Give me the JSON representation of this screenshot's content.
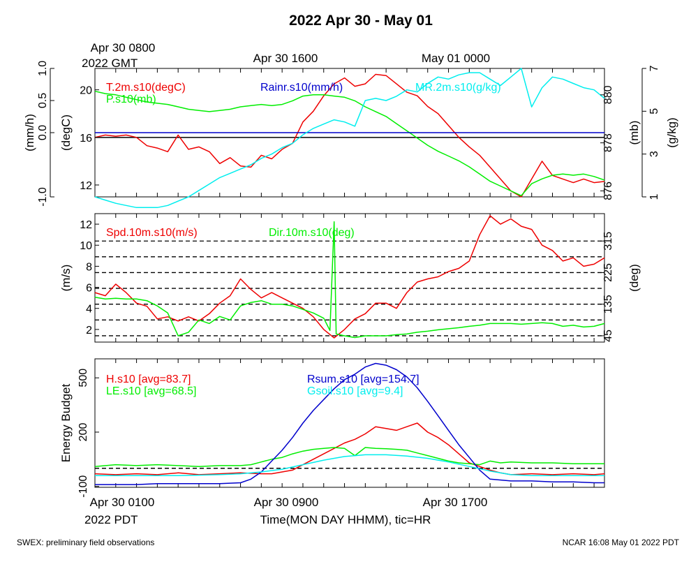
{
  "title": "2022 Apr 30 - May 01",
  "footer": {
    "left": "SWEX: preliminary field observations",
    "right": "NCAR 16:08 May 01 2022 PDT"
  },
  "top_axis": {
    "labels": [
      "Apr 30 0800",
      "Apr 30 1600",
      "May 01 0000"
    ],
    "gmt_label": "2022 GMT"
  },
  "bottom_axis": {
    "labels": [
      "Apr 30 0100",
      "Apr 30 0900",
      "Apr 30 1700"
    ],
    "pdt_label": "2022 PDT",
    "xlabel": "Time(MON DAY HHMM), tic=HR"
  },
  "colors": {
    "red": "#ee0000",
    "green": "#00ee00",
    "cyan": "#00eeee",
    "blue": "#0000cc",
    "black": "#000000"
  },
  "chart_data": [
    {
      "type": "line",
      "panel": "meteorology",
      "x_unit": "hours since Apr 30 0000 PDT",
      "xlim": [
        1,
        25.5
      ],
      "axes": {
        "rain": {
          "label": "(mm/h)",
          "ylim": [
            -1.0,
            1.0
          ],
          "ticks": [
            "-1.0",
            "0.0",
            "0.5",
            "1.0"
          ],
          "tick_values": [
            -1.0,
            0.0,
            0.5,
            1.0
          ]
        },
        "temp": {
          "label": "(degC)",
          "ylim": [
            11,
            21.8
          ],
          "ticks": [
            "12",
            "16",
            "20"
          ],
          "tick_values": [
            12,
            16,
            20
          ]
        },
        "pres": {
          "label": "(mb)",
          "ylim": [
            875.75,
            881.1
          ],
          "ticks": [
            "876",
            "878",
            "880"
          ],
          "tick_values": [
            876,
            878,
            880
          ]
        },
        "mr": {
          "label": "(g/kg)",
          "ylim": [
            1,
            7
          ],
          "ticks": [
            "1",
            "3",
            "5",
            "7"
          ],
          "tick_values": [
            1,
            3,
            5,
            7
          ]
        }
      },
      "reference_line": {
        "axis": "temp",
        "value": 16
      },
      "series": [
        {
          "name": "T.2m.s10(degC)",
          "color": "red",
          "axis": "temp",
          "x": [
            1,
            1.5,
            2,
            2.5,
            3,
            3.5,
            4,
            4.5,
            5,
            5.5,
            6,
            6.5,
            7,
            7.5,
            8,
            8.5,
            9,
            9.5,
            10,
            10.5,
            11,
            11.5,
            12,
            12.5,
            13,
            13.5,
            14,
            14.5,
            15,
            15.5,
            16,
            16.5,
            17,
            17.5,
            18,
            18.5,
            19,
            19.5,
            20,
            20.5,
            21,
            21.5,
            22,
            22.5,
            23,
            23.5,
            24,
            24.5,
            25,
            25.5
          ],
          "values": [
            16.0,
            16.2,
            16.1,
            16.2,
            16.0,
            15.3,
            15.1,
            14.8,
            16.2,
            15.0,
            15.2,
            14.8,
            13.8,
            14.3,
            13.6,
            13.5,
            14.5,
            14.2,
            15.0,
            15.5,
            17.3,
            18.2,
            19.5,
            20.5,
            21.0,
            20.3,
            20.5,
            21.3,
            21.2,
            20.5,
            19.8,
            19.5,
            18.6,
            18.0,
            17.0,
            16.0,
            15.2,
            14.5,
            13.5,
            12.5,
            11.5,
            11.0,
            12.5,
            14.0,
            12.8,
            12.5,
            12.2,
            12.5,
            12.2,
            12.3
          ]
        },
        {
          "name": "P.s10(mb)",
          "color": "green",
          "axis": "pres",
          "x": [
            1,
            1.5,
            2,
            2.5,
            3,
            3.5,
            4,
            4.5,
            5,
            5.5,
            6,
            6.5,
            7,
            7.5,
            8,
            8.5,
            9,
            9.5,
            10,
            10.5,
            11,
            11.5,
            12,
            12.5,
            13,
            13.5,
            14,
            14.5,
            15,
            15.5,
            16,
            16.5,
            17,
            17.5,
            18,
            18.5,
            19,
            19.5,
            20,
            20.5,
            21,
            21.5,
            22,
            22.5,
            23,
            23.5,
            24,
            24.5,
            25,
            25.5
          ],
          "values": [
            880.15,
            880.05,
            880.0,
            879.9,
            879.8,
            879.7,
            879.65,
            879.6,
            879.5,
            879.4,
            879.35,
            879.3,
            879.35,
            879.4,
            879.5,
            879.55,
            879.6,
            879.55,
            879.6,
            879.75,
            879.95,
            880.0,
            880.0,
            879.95,
            879.9,
            879.75,
            879.5,
            879.3,
            879.1,
            878.8,
            878.5,
            878.2,
            877.9,
            877.65,
            877.45,
            877.25,
            877.0,
            876.7,
            876.4,
            876.2,
            876.0,
            875.8,
            876.3,
            876.5,
            876.65,
            876.7,
            876.65,
            876.7,
            876.6,
            876.45
          ]
        },
        {
          "name": "Rainr.s10(mm/h)",
          "color": "blue",
          "axis": "rain",
          "x": [
            1,
            25.5
          ],
          "values": [
            0.0,
            0.0
          ]
        },
        {
          "name": "MR.2m.s10(g/kg)",
          "color": "cyan",
          "axis": "mr",
          "x": [
            1,
            1.5,
            2,
            2.5,
            3,
            3.5,
            4,
            4.5,
            5,
            5.5,
            6,
            6.5,
            7,
            7.5,
            8,
            8.5,
            9,
            9.5,
            10,
            10.5,
            11,
            11.5,
            12,
            12.5,
            13,
            13.5,
            14,
            14.5,
            15,
            15.5,
            16,
            16.5,
            17,
            17.5,
            18,
            18.5,
            19,
            19.5,
            20,
            20.5,
            21,
            21.5,
            22,
            22.5,
            23,
            23.5,
            24,
            24.5,
            25,
            25.5
          ],
          "values": [
            1.0,
            0.85,
            0.7,
            0.6,
            0.5,
            0.5,
            0.5,
            0.6,
            0.8,
            1.0,
            1.3,
            1.6,
            1.9,
            2.1,
            2.3,
            2.5,
            2.8,
            3.0,
            3.3,
            3.5,
            3.9,
            4.2,
            4.4,
            4.6,
            4.5,
            4.3,
            5.5,
            5.6,
            5.5,
            5.7,
            6.0,
            5.9,
            6.3,
            6.6,
            6.5,
            6.7,
            6.8,
            6.8,
            6.5,
            6.2,
            6.6,
            7.0,
            5.2,
            6.1,
            6.6,
            6.5,
            6.3,
            6.1,
            6.0,
            5.6
          ]
        }
      ],
      "legend": [
        "T.2m.s10(degC)",
        "P.s10(mb)",
        "Rainr.s10(mm/h)",
        "MR.2m.s10(g/kg)"
      ]
    },
    {
      "type": "line",
      "panel": "wind",
      "x_unit": "hours since Apr 30 0000 PDT",
      "xlim": [
        1,
        25.5
      ],
      "axes": {
        "spd": {
          "label": "(m/s)",
          "ylim": [
            0.8,
            13.0
          ],
          "ticks": [
            "2",
            "4",
            "6",
            "8",
            "10",
            "12"
          ],
          "tick_values": [
            2,
            4,
            6,
            8,
            10,
            12
          ]
        },
        "dir": {
          "label": "(deg)",
          "ylim": [
            27,
            393
          ],
          "ticks": [
            "45",
            "135",
            "225",
            "315"
          ],
          "tick_values": [
            45,
            135,
            225,
            315
          ]
        }
      },
      "dashed_lines": {
        "axis": "dir",
        "values": [
          45,
          90,
          135,
          180,
          225,
          270,
          315
        ]
      },
      "series": [
        {
          "name": "Spd.10m.s10(m/s)",
          "color": "red",
          "axis": "spd",
          "x": [
            1,
            1.5,
            2,
            2.5,
            3,
            3.5,
            4,
            4.5,
            5,
            5.5,
            6,
            6.5,
            7,
            7.5,
            8,
            8.5,
            9,
            9.5,
            10,
            10.5,
            11,
            11.5,
            12,
            12.5,
            13,
            13.5,
            14,
            14.5,
            15,
            15.5,
            16,
            16.5,
            17,
            17.5,
            18,
            18.5,
            19,
            19.5,
            20,
            20.5,
            21,
            21.5,
            22,
            22.5,
            23,
            23.5,
            24,
            24.5,
            25,
            25.5
          ],
          "values": [
            5.5,
            5.2,
            6.3,
            5.5,
            4.5,
            4.2,
            3.0,
            3.2,
            2.8,
            3.2,
            2.8,
            3.5,
            4.5,
            5.2,
            6.8,
            5.8,
            5.0,
            5.5,
            5.0,
            4.5,
            4.0,
            3.2,
            2.0,
            1.2,
            2.0,
            3.0,
            3.5,
            4.5,
            4.5,
            4.0,
            5.5,
            6.5,
            6.8,
            7.0,
            7.5,
            7.8,
            8.5,
            11.0,
            12.8,
            12.0,
            12.5,
            11.8,
            11.5,
            10.0,
            9.5,
            8.5,
            8.8,
            8.0,
            8.2,
            8.8
          ]
        },
        {
          "name": "Dir.10m.s10(deg)",
          "color": "green",
          "axis": "dir",
          "x": [
            1,
            1.5,
            2,
            2.5,
            3,
            3.5,
            4,
            4.5,
            5,
            5.5,
            6,
            6.5,
            7,
            7.5,
            8,
            8.5,
            9,
            9.5,
            10,
            10.5,
            11,
            11.5,
            12,
            12.3,
            12.5,
            12.6,
            13,
            13.5,
            14,
            14.5,
            15,
            15.5,
            16,
            16.5,
            17,
            17.5,
            18,
            18.5,
            19,
            19.5,
            20,
            20.5,
            21,
            21.5,
            22,
            22.5,
            23,
            23.5,
            24,
            24.5,
            25,
            25.5
          ],
          "values": [
            155,
            150,
            152,
            150,
            150,
            145,
            130,
            110,
            45,
            55,
            90,
            80,
            100,
            90,
            130,
            140,
            145,
            135,
            135,
            130,
            120,
            110,
            95,
            60,
            370,
            50,
            45,
            40,
            45,
            45,
            45,
            48,
            50,
            55,
            58,
            62,
            65,
            68,
            72,
            75,
            80,
            80,
            80,
            78,
            80,
            82,
            80,
            72,
            75,
            70,
            72,
            80
          ]
        }
      ],
      "legend": [
        "Spd.10m.s10(m/s)",
        "Dir.10m.s10(deg)"
      ]
    },
    {
      "type": "line",
      "panel": "energy",
      "x_unit": "hours since Apr 30 0000 PDT",
      "xlim": [
        1,
        25.5
      ],
      "ylabel": "Energy Budget",
      "ylim": [
        -105,
        605
      ],
      "ticks": [
        "-100",
        "200",
        "500"
      ],
      "tick_values": [
        -100,
        200,
        500
      ],
      "reference_line": {
        "value": 0
      },
      "series": [
        {
          "name": "H.s10 [avg=83.7]",
          "color": "red",
          "x": [
            1,
            2,
            3,
            4,
            5,
            6,
            7,
            8,
            9,
            9.5,
            10,
            10.5,
            11,
            11.5,
            12,
            12.5,
            13,
            13.5,
            14,
            14.5,
            15,
            15.5,
            16,
            16.5,
            17,
            17.5,
            18,
            18.5,
            19,
            19.5,
            20,
            20.5,
            21,
            22,
            23,
            24,
            25,
            25.5
          ],
          "values": [
            -30,
            -35,
            -30,
            -35,
            -25,
            -35,
            -30,
            -25,
            -30,
            -30,
            -20,
            -10,
            20,
            50,
            80,
            110,
            140,
            160,
            190,
            230,
            220,
            210,
            230,
            250,
            200,
            170,
            130,
            80,
            30,
            10,
            -10,
            -25,
            -35,
            -30,
            -35,
            -30,
            -35,
            -30
          ]
        },
        {
          "name": "LE.s10 [avg=68.5]",
          "color": "green",
          "x": [
            1,
            2,
            3,
            4,
            5,
            6,
            7,
            8,
            8.5,
            9,
            9.5,
            10,
            10.5,
            11,
            11.5,
            12,
            12.5,
            13,
            13.5,
            14,
            14.5,
            15,
            15.5,
            16,
            16.5,
            17,
            17.5,
            18,
            18.5,
            19,
            19.5,
            20,
            20.5,
            21,
            22,
            23,
            24,
            25,
            25.5
          ],
          "values": [
            10,
            20,
            15,
            20,
            15,
            10,
            15,
            15,
            20,
            35,
            50,
            60,
            80,
            95,
            105,
            110,
            115,
            110,
            70,
            115,
            110,
            108,
            105,
            100,
            85,
            70,
            55,
            40,
            30,
            25,
            20,
            40,
            30,
            35,
            30,
            30,
            25,
            25,
            25
          ]
        },
        {
          "name": "Rsum.s10 [avg=154.7]",
          "color": "blue",
          "x": [
            1,
            2,
            3,
            4,
            5,
            6,
            7,
            8,
            8.5,
            9,
            9.5,
            10,
            10.5,
            11,
            11.5,
            12,
            12.5,
            13,
            13.5,
            14,
            14.5,
            15,
            15.5,
            16,
            16.5,
            17,
            17.5,
            18,
            18.5,
            19,
            19.5,
            20,
            21,
            22,
            23,
            24,
            25,
            25.5
          ],
          "values": [
            -90,
            -90,
            -90,
            -85,
            -85,
            -85,
            -85,
            -80,
            -60,
            -20,
            40,
            100,
            170,
            250,
            320,
            380,
            440,
            490,
            520,
            560,
            580,
            570,
            545,
            505,
            445,
            370,
            290,
            210,
            130,
            60,
            -10,
            -60,
            -70,
            -70,
            -75,
            -75,
            -80,
            -80
          ]
        },
        {
          "name": "Gsoil.s10 [avg=9.4]",
          "color": "cyan",
          "x": [
            1,
            2,
            3,
            4,
            5,
            6,
            7,
            8,
            9,
            10,
            11,
            12,
            13,
            14,
            15,
            16,
            17,
            18,
            19,
            20,
            21,
            22,
            23,
            24,
            25,
            25.5
          ],
          "values": [
            -40,
            -40,
            -40,
            -40,
            -40,
            -38,
            -35,
            -30,
            -20,
            -5,
            20,
            45,
            65,
            75,
            75,
            68,
            55,
            35,
            10,
            -15,
            -35,
            -40,
            -40,
            -40,
            -40,
            -40
          ]
        }
      ],
      "legend": [
        "H.s10 [avg=83.7]",
        "LE.s10 [avg=68.5]",
        "Rsum.s10 [avg=154.7]",
        "Gsoil.s10 [avg=9.4]"
      ]
    }
  ]
}
